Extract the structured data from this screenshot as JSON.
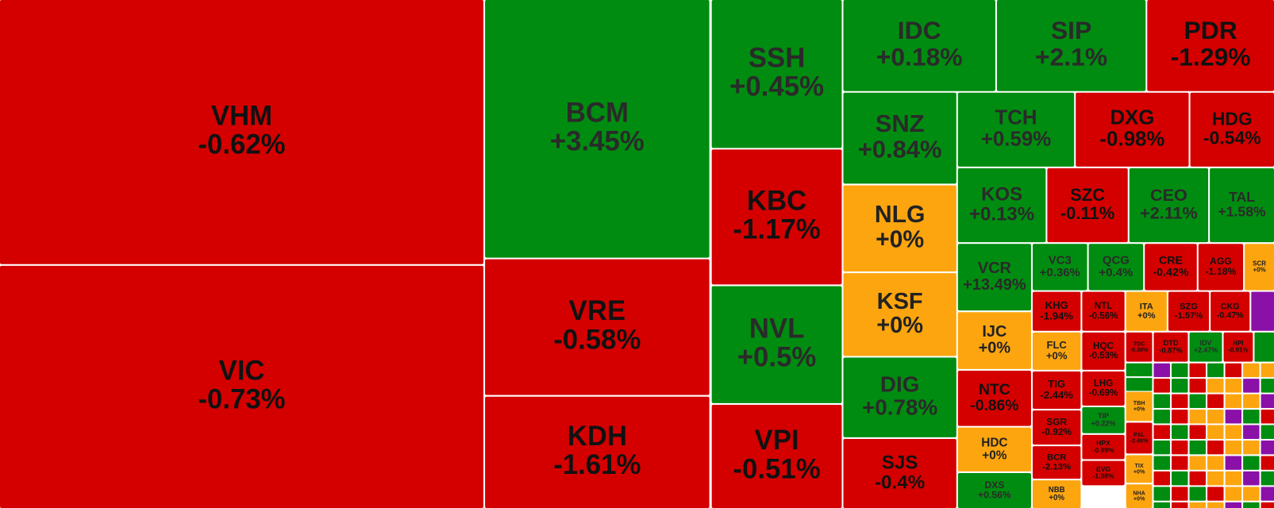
{
  "chart_data": {
    "type": "treemap",
    "categories": [
      "VHM",
      "VIC",
      "BCM",
      "VRE",
      "KDH",
      "SSH",
      "KBC",
      "NVL",
      "VPI",
      "IDC",
      "SIP",
      "PDR",
      "SNZ",
      "NLG",
      "KSF",
      "DIG",
      "SJS",
      "TCH",
      "DXG",
      "HDG",
      "KOS",
      "SZC",
      "CEO",
      "TAL",
      "VCR",
      "IJC",
      "NTC",
      "HDC",
      "DXS",
      "VC3",
      "QCG",
      "CRE",
      "AGG",
      "SCR",
      "KHG",
      "NTL",
      "ITA",
      "SZG",
      "CKG",
      "FLC",
      "HQC",
      "TDC",
      "DTD",
      "IDV",
      "HPI",
      "TIG",
      "LHG",
      "SGR",
      "TIP",
      "BCR",
      "HPX",
      "NBB",
      "EVG",
      "TBH",
      "PXL",
      "TIX",
      "NHA"
    ],
    "values": [
      -0.62,
      -0.73,
      3.45,
      -0.58,
      -1.61,
      0.45,
      -1.17,
      0.5,
      -0.51,
      0.18,
      2.1,
      -1.29,
      0.84,
      0,
      0,
      0.78,
      -0.4,
      0.59,
      -0.98,
      -0.54,
      0.13,
      -0.11,
      2.11,
      1.58,
      13.49,
      0,
      -0.86,
      0,
      0.56,
      0.36,
      0.4,
      -0.42,
      -1.18,
      0,
      -1.94,
      -0.56,
      0,
      -1.57,
      -0.47,
      0,
      -0.53,
      -0.38,
      -0.87,
      2.47,
      -0.91,
      -2.44,
      -0.69,
      -0.92,
      0.22,
      -2.13,
      -0.99,
      0,
      -1.98,
      0,
      -2.46,
      0,
      0
    ],
    "value_labels": [
      "-0.62%",
      "-0.73%",
      "+3.45%",
      "-0.58%",
      "-1.61%",
      "+0.45%",
      "-1.17%",
      "+0.5%",
      "-0.51%",
      "+0.18%",
      "+2.1%",
      "-1.29%",
      "+0.84%",
      "+0%",
      "+0%",
      "+0.78%",
      "-0.4%",
      "+0.59%",
      "-0.98%",
      "-0.54%",
      "+0.13%",
      "-0.11%",
      "+2.11%",
      "+1.58%",
      "+13.49%",
      "+0%",
      "-0.86%",
      "+0%",
      "+0.56%",
      "+0.36%",
      "+0.4%",
      "-0.42%",
      "-1.18%",
      "+0%",
      "-1.94%",
      "-0.56%",
      "+0%",
      "-1.57%",
      "-0.47%",
      "+0%",
      "-0.53%",
      "-0.38%",
      "-0.87%",
      "+2.47%",
      "-0.91%",
      "-2.44%",
      "-0.69%",
      "-0.92%",
      "+0.22%",
      "-2.13%",
      "-0.99%",
      "+0%",
      "-1.98%",
      "+0%",
      "-2.46%",
      "+0%",
      "+0%"
    ],
    "colors": {
      "up": "#008c10",
      "down": "#d40000",
      "flat": "#fda50f"
    }
  }
}
